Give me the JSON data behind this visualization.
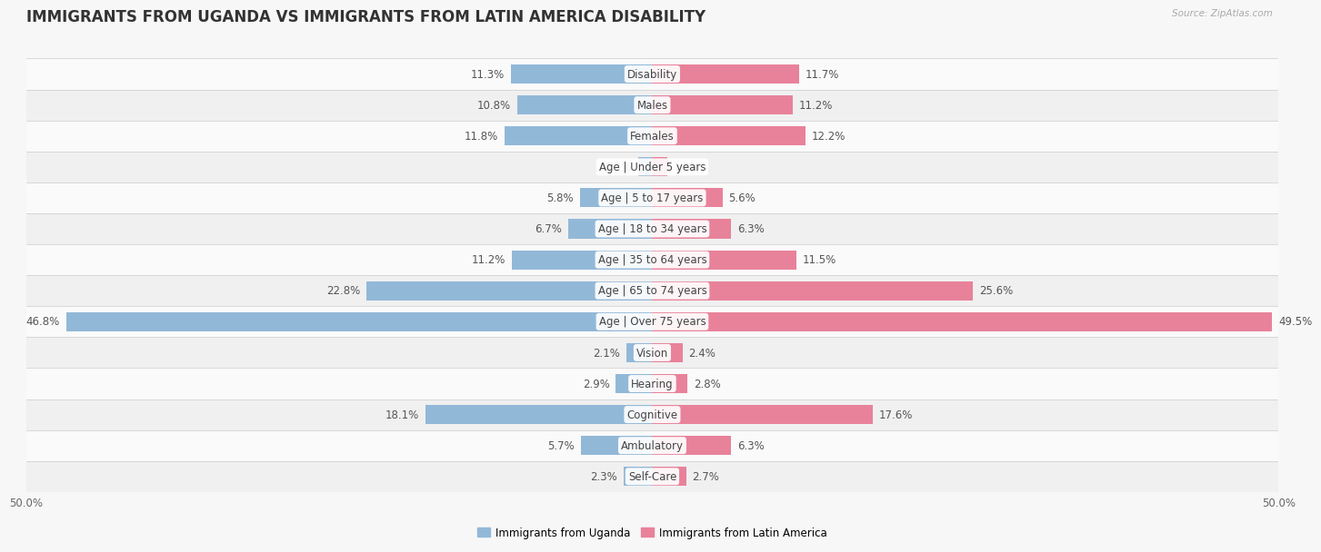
{
  "title": "IMMIGRANTS FROM UGANDA VS IMMIGRANTS FROM LATIN AMERICA DISABILITY",
  "source": "Source: ZipAtlas.com",
  "categories": [
    "Disability",
    "Males",
    "Females",
    "Age | Under 5 years",
    "Age | 5 to 17 years",
    "Age | 18 to 34 years",
    "Age | 35 to 64 years",
    "Age | 65 to 74 years",
    "Age | Over 75 years",
    "Vision",
    "Hearing",
    "Cognitive",
    "Ambulatory",
    "Self-Care"
  ],
  "uganda_values": [
    11.3,
    10.8,
    11.8,
    1.1,
    5.8,
    6.7,
    11.2,
    22.8,
    46.8,
    2.1,
    2.9,
    18.1,
    5.7,
    2.3
  ],
  "latam_values": [
    11.7,
    11.2,
    12.2,
    1.2,
    5.6,
    6.3,
    11.5,
    25.6,
    49.5,
    2.4,
    2.8,
    17.6,
    6.3,
    2.7
  ],
  "uganda_color": "#92b8d8",
  "latam_color": "#e8829a",
  "axis_limit": 50.0,
  "legend_uganda": "Immigrants from Uganda",
  "legend_latam": "Immigrants from Latin America",
  "bg_color": "#f7f7f7",
  "row_color_odd": "#f0f0f0",
  "row_color_even": "#fafafa",
  "title_fontsize": 12,
  "label_fontsize": 8.5,
  "value_fontsize": 8.5,
  "cat_fontsize": 8.5
}
